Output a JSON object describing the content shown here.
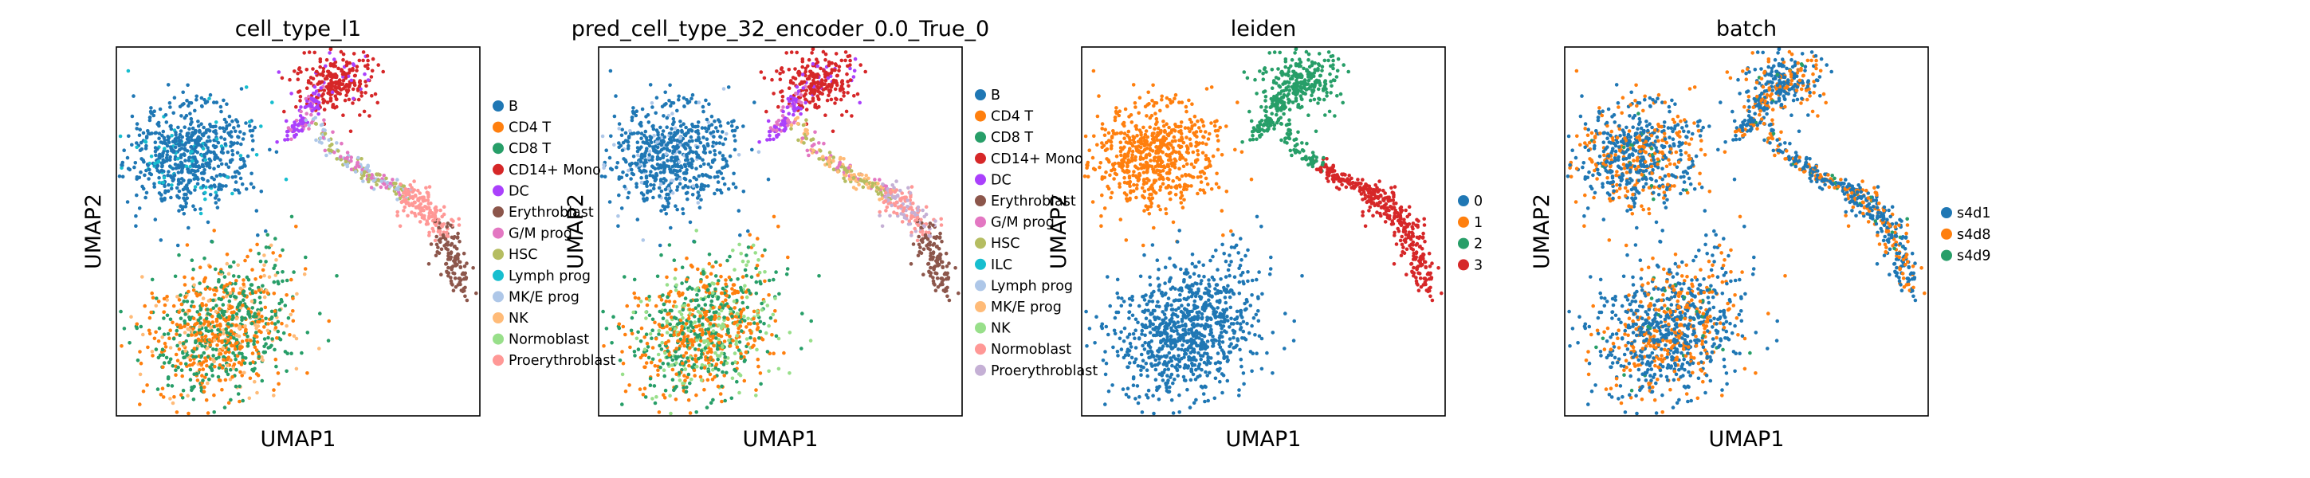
{
  "chart_data": [
    {
      "type": "scatter",
      "title": "cell_type_l1",
      "xlabel": "UMAP1",
      "ylabel": "UMAP2",
      "grid": false,
      "legend_position": "right",
      "xlim": [
        -6,
        16
      ],
      "ylim": [
        -6,
        16
      ],
      "series": [
        {
          "name": "B",
          "color": "#1f77b4"
        },
        {
          "name": "CD4 T",
          "color": "#ff7f0e"
        },
        {
          "name": "CD8 T",
          "color": "#279e68"
        },
        {
          "name": "CD14+ Mono",
          "color": "#d62728"
        },
        {
          "name": "DC",
          "color": "#aa40fc"
        },
        {
          "name": "Erythroblast",
          "color": "#8c564b"
        },
        {
          "name": "G/M prog",
          "color": "#e377c2"
        },
        {
          "name": "HSC",
          "color": "#b5bd61"
        },
        {
          "name": "Lymph prog",
          "color": "#17becf"
        },
        {
          "name": "MK/E prog",
          "color": "#aec7e8"
        },
        {
          "name": "NK",
          "color": "#ffbb78"
        },
        {
          "name": "Normoblast",
          "color": "#98df8a"
        },
        {
          "name": "Proerythroblast",
          "color": "#ff9896"
        }
      ]
    },
    {
      "type": "scatter",
      "title": "pred_cell_type_32_encoder_0.0_True_0",
      "xlabel": "UMAP1",
      "ylabel": "UMAP2",
      "grid": false,
      "legend_position": "right",
      "xlim": [
        -6,
        16
      ],
      "ylim": [
        -6,
        16
      ],
      "series": [
        {
          "name": "B",
          "color": "#1f77b4"
        },
        {
          "name": "CD4 T",
          "color": "#ff7f0e"
        },
        {
          "name": "CD8 T",
          "color": "#279e68"
        },
        {
          "name": "CD14+ Mono",
          "color": "#d62728"
        },
        {
          "name": "DC",
          "color": "#aa40fc"
        },
        {
          "name": "Erythroblast",
          "color": "#8c564b"
        },
        {
          "name": "G/M prog",
          "color": "#e377c2"
        },
        {
          "name": "HSC",
          "color": "#b5bd61"
        },
        {
          "name": "ILC",
          "color": "#17becf"
        },
        {
          "name": "Lymph prog",
          "color": "#aec7e8"
        },
        {
          "name": "MK/E prog",
          "color": "#ffbb78"
        },
        {
          "name": "NK",
          "color": "#98df8a"
        },
        {
          "name": "Normoblast",
          "color": "#ff9896"
        },
        {
          "name": "Proerythroblast",
          "color": "#c5b0d5"
        }
      ]
    },
    {
      "type": "scatter",
      "title": "leiden",
      "xlabel": "UMAP1",
      "ylabel": "UMAP2",
      "grid": false,
      "legend_position": "right",
      "xlim": [
        -6,
        16
      ],
      "ylim": [
        -6,
        16
      ],
      "series": [
        {
          "name": "0",
          "color": "#1f77b4"
        },
        {
          "name": "1",
          "color": "#ff7f0e"
        },
        {
          "name": "2",
          "color": "#279e68"
        },
        {
          "name": "3",
          "color": "#d62728"
        }
      ]
    },
    {
      "type": "scatter",
      "title": "batch",
      "xlabel": "UMAP1",
      "ylabel": "UMAP2",
      "grid": false,
      "legend_position": "right",
      "xlim": [
        -6,
        16
      ],
      "ylim": [
        -6,
        16
      ],
      "series": [
        {
          "name": "s4d1",
          "color": "#1f77b4"
        },
        {
          "name": "s4d8",
          "color": "#ff7f0e"
        },
        {
          "name": "s4d9",
          "color": "#279e68"
        }
      ]
    }
  ]
}
